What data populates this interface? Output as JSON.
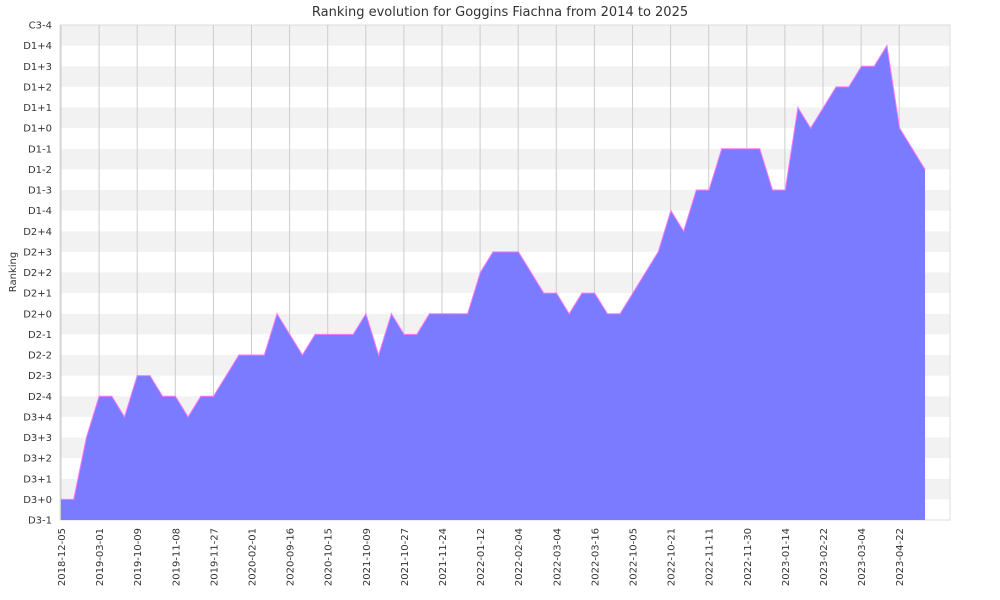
{
  "chart_data": {
    "type": "area",
    "title": "Ranking evolution for Goggins Fiachna from 2014 to 2025",
    "xlabel": "",
    "ylabel": "Ranking",
    "y_levels": [
      "D3-1",
      "D3+0",
      "D3+1",
      "D3+2",
      "D3+3",
      "D3+4",
      "D2-4",
      "D2-3",
      "D2-2",
      "D2-1",
      "D2+0",
      "D2+1",
      "D2+2",
      "D2+3",
      "D2+4",
      "D1-4",
      "D1-3",
      "D1-2",
      "D1-1",
      "D1+0",
      "D1+1",
      "D1+2",
      "D1+3",
      "D1+4",
      "C3-4"
    ],
    "x_tick_labels": [
      "2018-12-05",
      "2019-03-01",
      "2019-10-09",
      "2019-11-08",
      "2019-11-27",
      "2020-02-01",
      "2020-09-16",
      "2020-10-15",
      "2021-10-09",
      "2021-10-27",
      "2021-11-24",
      "2022-01-12",
      "2022-02-04",
      "2022-03-04",
      "2022-03-16",
      "2022-10-05",
      "2022-10-21",
      "2022-11-11",
      "2022-11-30",
      "2023-01-14",
      "2023-02-22",
      "2023-03-04",
      "2023-04-22"
    ],
    "values": [
      "D3+0",
      "D3+0",
      "D3+3",
      "D2-4",
      "D2-4",
      "D3+4",
      "D2-3",
      "D2-3",
      "D2-4",
      "D2-4",
      "D3+4",
      "D2-4",
      "D2-4",
      "D2-3",
      "D2-2",
      "D2-2",
      "D2-2",
      "D2+0",
      "D2-1",
      "D2-2",
      "D2-1",
      "D2-1",
      "D2-1",
      "D2-1",
      "D2+0",
      "D2-2",
      "D2+0",
      "D2-1",
      "D2-1",
      "D2+0",
      "D2+0",
      "D2+0",
      "D2+0",
      "D2+2",
      "D2+3",
      "D2+3",
      "D2+3",
      "D2+2",
      "D2+1",
      "D2+1",
      "D2+0",
      "D2+1",
      "D2+1",
      "D2+0",
      "D2+0",
      "D2+1",
      "D2+2",
      "D2+3",
      "D1-4",
      "D2+4",
      "D1-3",
      "D1-3",
      "D1-1",
      "D1-1",
      "D1-1",
      "D1-1",
      "D1-3",
      "D1-3",
      "D1+1",
      "D1+0",
      "D1+1",
      "D1+2",
      "D1+2",
      "D1+3",
      "D1+3",
      "D1+4",
      "D1+0",
      "D1-1",
      "D1-2"
    ],
    "grid": true,
    "fill_color": "#7b7bff",
    "line_color": "#ff77ff",
    "band_colors": [
      "#f2f2f2",
      "#ffffff"
    ],
    "legend": "none"
  }
}
